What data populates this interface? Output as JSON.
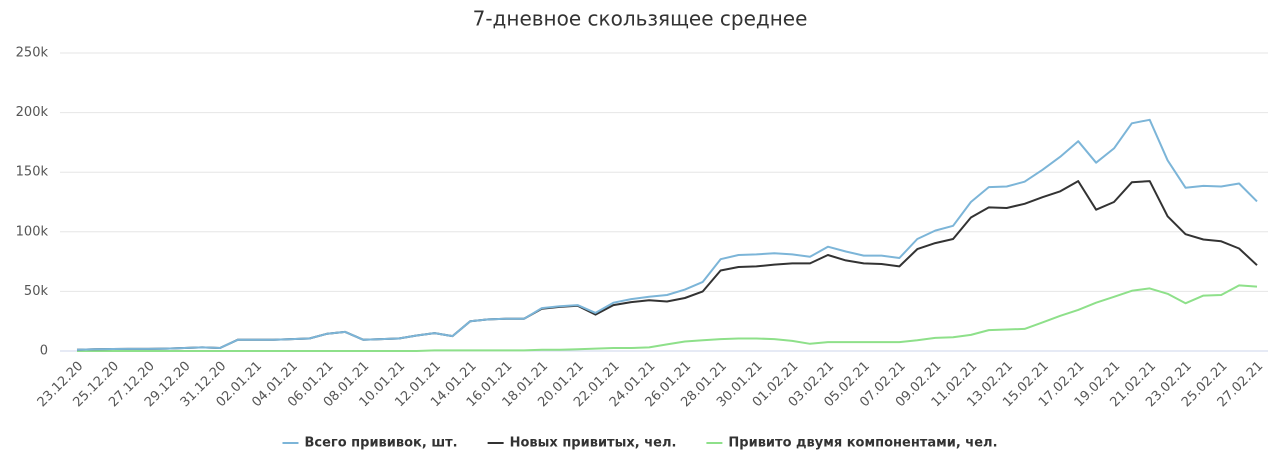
{
  "chart_data": {
    "type": "line",
    "title": "7-дневное скользящее среднее",
    "categories": [
      "23.12.20",
      null,
      "25.12.20",
      null,
      "27.12.20",
      null,
      "29.12.20",
      null,
      "31.12.20",
      null,
      "02.01.21",
      null,
      "04.01.21",
      null,
      "06.01.21",
      null,
      "08.01.21",
      null,
      "10.01.21",
      null,
      "12.01.21",
      null,
      "14.01.21",
      null,
      "16.01.21",
      null,
      "18.01.21",
      null,
      "20.01.21",
      null,
      "22.01.21",
      null,
      "24.01.21",
      null,
      "26.01.21",
      null,
      "28.01.21",
      null,
      "30.01.21",
      null,
      "01.02.21",
      null,
      "03.02.21",
      null,
      "05.02.21",
      null,
      "07.02.21",
      null,
      "09.02.21",
      null,
      "11.02.21",
      null,
      "13.02.21",
      null,
      "15.02.21",
      null,
      "17.02.21",
      null,
      "19.02.21",
      null,
      "21.02.21",
      null,
      "23.02.21",
      null,
      "25.02.21",
      null,
      "27.02.21"
    ],
    "series": [
      {
        "name": "Всего прививок, шт.",
        "color": "#7cb5d8",
        "values": [
          1000,
          1500,
          1700,
          1800,
          1800,
          2000,
          2500,
          3000,
          2500,
          9500,
          9500,
          9500,
          10000,
          10500,
          14500,
          16000,
          9500,
          10000,
          10500,
          13000,
          15000,
          12500,
          25000,
          26500,
          27000,
          27000,
          36000,
          37500,
          38500,
          32000,
          40500,
          43500,
          45500,
          47000,
          51500,
          58000,
          77000,
          80500,
          81000,
          82000,
          81000,
          79000,
          87500,
          83500,
          80000,
          80000,
          78000,
          94000,
          101000,
          105000,
          125000,
          137500,
          138000,
          142000,
          152000,
          163000,
          176000,
          158000,
          170000,
          191000,
          194000,
          160000,
          137000,
          138500,
          138000,
          140500,
          125500
        ]
      },
      {
        "name": "Новых привитых, чел.",
        "color": "#333333",
        "values": [
          1000,
          1500,
          1700,
          1800,
          1800,
          2000,
          2500,
          3000,
          2500,
          9500,
          9500,
          9500,
          10000,
          10500,
          14500,
          16000,
          9500,
          10000,
          10500,
          13000,
          15000,
          12500,
          25000,
          26500,
          27000,
          27000,
          35500,
          37000,
          38000,
          30500,
          38500,
          41000,
          42500,
          41500,
          44500,
          50000,
          67500,
          70500,
          71000,
          72500,
          73500,
          73500,
          80500,
          76000,
          73500,
          73000,
          71000,
          85500,
          90500,
          94000,
          112000,
          120500,
          120000,
          123500,
          129000,
          134000,
          142500,
          118500,
          125000,
          141500,
          142500,
          113000,
          98000,
          93500,
          92000,
          86000,
          72000
        ]
      },
      {
        "name": "Привито двумя компонентами, чел.",
        "color": "#8ee08a",
        "values": [
          0,
          0,
          0,
          0,
          0,
          0,
          0,
          0,
          0,
          0,
          0,
          0,
          0,
          0,
          0,
          0,
          0,
          0,
          0,
          0,
          500,
          500,
          500,
          500,
          500,
          500,
          1000,
          1000,
          1500,
          2000,
          2500,
          2500,
          3000,
          5500,
          8000,
          9000,
          10000,
          10500,
          10500,
          10000,
          8500,
          6000,
          7500,
          7500,
          7500,
          7500,
          7500,
          9000,
          11000,
          11500,
          13500,
          17500,
          18000,
          18500,
          24000,
          29500,
          34500,
          40500,
          45500,
          50500,
          52500,
          48000,
          40000,
          46500,
          47000,
          55000,
          54000
        ]
      }
    ],
    "ylim": [
      0,
      250000
    ],
    "yticks": [
      0,
      {
        "value": 50000,
        "label": "50k"
      },
      {
        "value": 100000,
        "label": "100k"
      },
      {
        "value": 150000,
        "label": "150k"
      },
      {
        "value": 200000,
        "label": "200k"
      },
      {
        "value": 250000,
        "label": "250k"
      }
    ],
    "grid": true,
    "legend": "bottom"
  }
}
